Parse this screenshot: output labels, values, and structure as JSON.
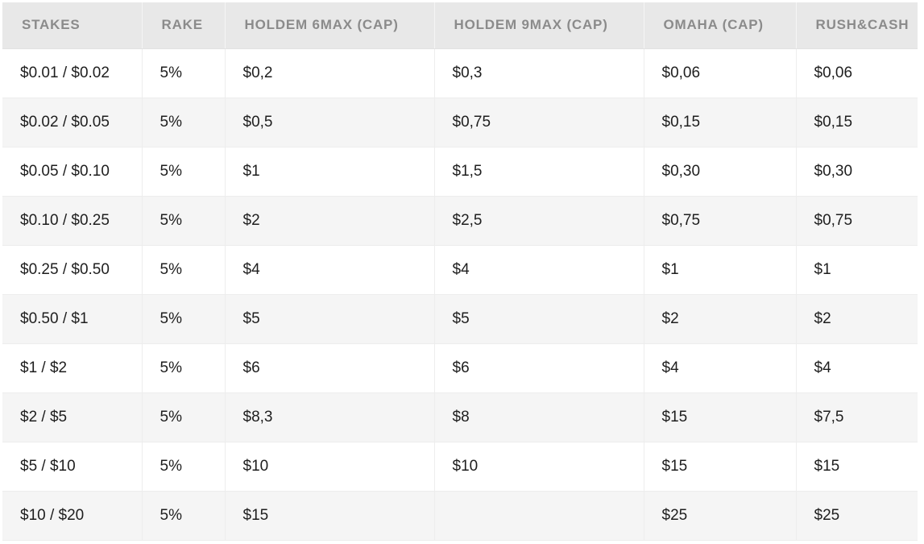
{
  "table": {
    "columns": [
      {
        "key": "stakes",
        "label": "STAKES"
      },
      {
        "key": "rake",
        "label": "RAKE"
      },
      {
        "key": "holdem6max",
        "label": "HOLDEM 6MAX (CAP)"
      },
      {
        "key": "holdem9max",
        "label": "HOLDEM 9MAX (CAP)"
      },
      {
        "key": "omaha",
        "label": "OMAHA (CAP)"
      },
      {
        "key": "rushcash",
        "label": "RUSH&CASH"
      }
    ],
    "rows": [
      [
        "$0.01 / $0.02",
        "5%",
        "$0,2",
        "$0,3",
        "$0,06",
        "$0,06"
      ],
      [
        "$0.02 / $0.05",
        "5%",
        "$0,5",
        "$0,75",
        "$0,15",
        "$0,15"
      ],
      [
        "$0.05 / $0.10",
        "5%",
        "$1",
        "$1,5",
        "$0,30",
        "$0,30"
      ],
      [
        "$0.10 / $0.25",
        "5%",
        "$2",
        "$2,5",
        "$0,75",
        "$0,75"
      ],
      [
        "$0.25 / $0.50",
        "5%",
        "$4",
        "$4",
        "$1",
        "$1"
      ],
      [
        "$0.50 / $1",
        "5%",
        "$5",
        "$5",
        "$2",
        "$2"
      ],
      [
        "$1 / $2",
        "5%",
        "$6",
        "$6",
        "$4",
        "$4"
      ],
      [
        "$2 / $5",
        "5%",
        "$8,3",
        "$8",
        "$15",
        "$7,5"
      ],
      [
        "$5 / $10",
        "5%",
        "$10",
        "$10",
        "$15",
        "$15"
      ],
      [
        "$10 / $20",
        "5%",
        "$15",
        "",
        "$25",
        "$25"
      ]
    ]
  },
  "colors": {
    "header_bg": "#e8e8e8",
    "header_text": "#8b8b8b",
    "stripe_bg": "#f5f5f5",
    "body_text": "#1e1e1e",
    "border": "#ededed",
    "page_bg": "#ffffff"
  }
}
